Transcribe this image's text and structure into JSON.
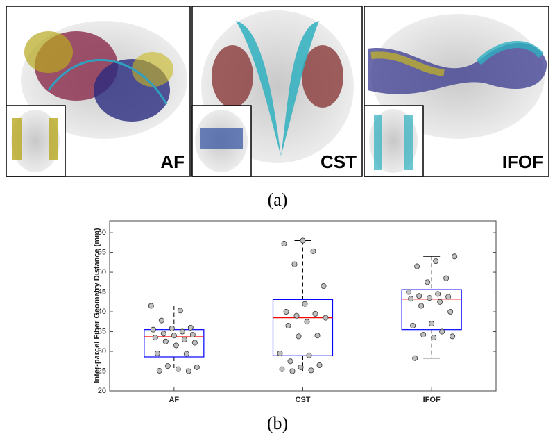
{
  "panel_a": {
    "images": [
      {
        "label": "AF"
      },
      {
        "label": "CST"
      },
      {
        "label": "IFOF"
      }
    ],
    "caption": "(a)"
  },
  "chart_data": {
    "type": "box",
    "y_label": "Inter-parcel Fiber Geometry Distance (mm)",
    "categories": [
      "AF",
      "CST",
      "IFOF"
    ],
    "box_color": "#0000ff",
    "median_color": "#ff0000",
    "point_color": "#bfbfbf",
    "ylim": [
      20,
      63
    ],
    "yticks": [
      20,
      25,
      30,
      35,
      40,
      45,
      50,
      55,
      60
    ],
    "boxes": [
      {
        "min": 25,
        "q1": 28.6,
        "median": 33.7,
        "q3": 35.5,
        "max": 41.5,
        "points": [
          41.5,
          40.3,
          37.8,
          36,
          35.8,
          35.5,
          35,
          34.5,
          34.2,
          34,
          33.5,
          33,
          32.5,
          32.2,
          31.5,
          29.5,
          29.4,
          26.3,
          26,
          25.5,
          25.1,
          25
        ]
      },
      {
        "min": 25,
        "q1": 28.9,
        "median": 38.5,
        "q3": 43.1,
        "max": 58,
        "points": [
          58,
          57.2,
          55.3,
          52,
          46.5,
          42,
          40,
          39.5,
          39,
          38.5,
          37.5,
          36.5,
          34,
          33.8,
          29.5,
          29,
          27.5,
          26.5,
          26,
          25.5,
          25.2,
          25
        ]
      },
      {
        "min": 28.3,
        "q1": 35.5,
        "median": 43.2,
        "q3": 45.6,
        "max": 54,
        "points": [
          54,
          52.8,
          51.5,
          48.5,
          47.5,
          45,
          44.5,
          44,
          43.8,
          43.5,
          43.3,
          42.5,
          41.5,
          40,
          37,
          36.5,
          35,
          34.2,
          33.8,
          33.5,
          28.3
        ]
      }
    ]
  },
  "panel_b_caption": "(b)"
}
